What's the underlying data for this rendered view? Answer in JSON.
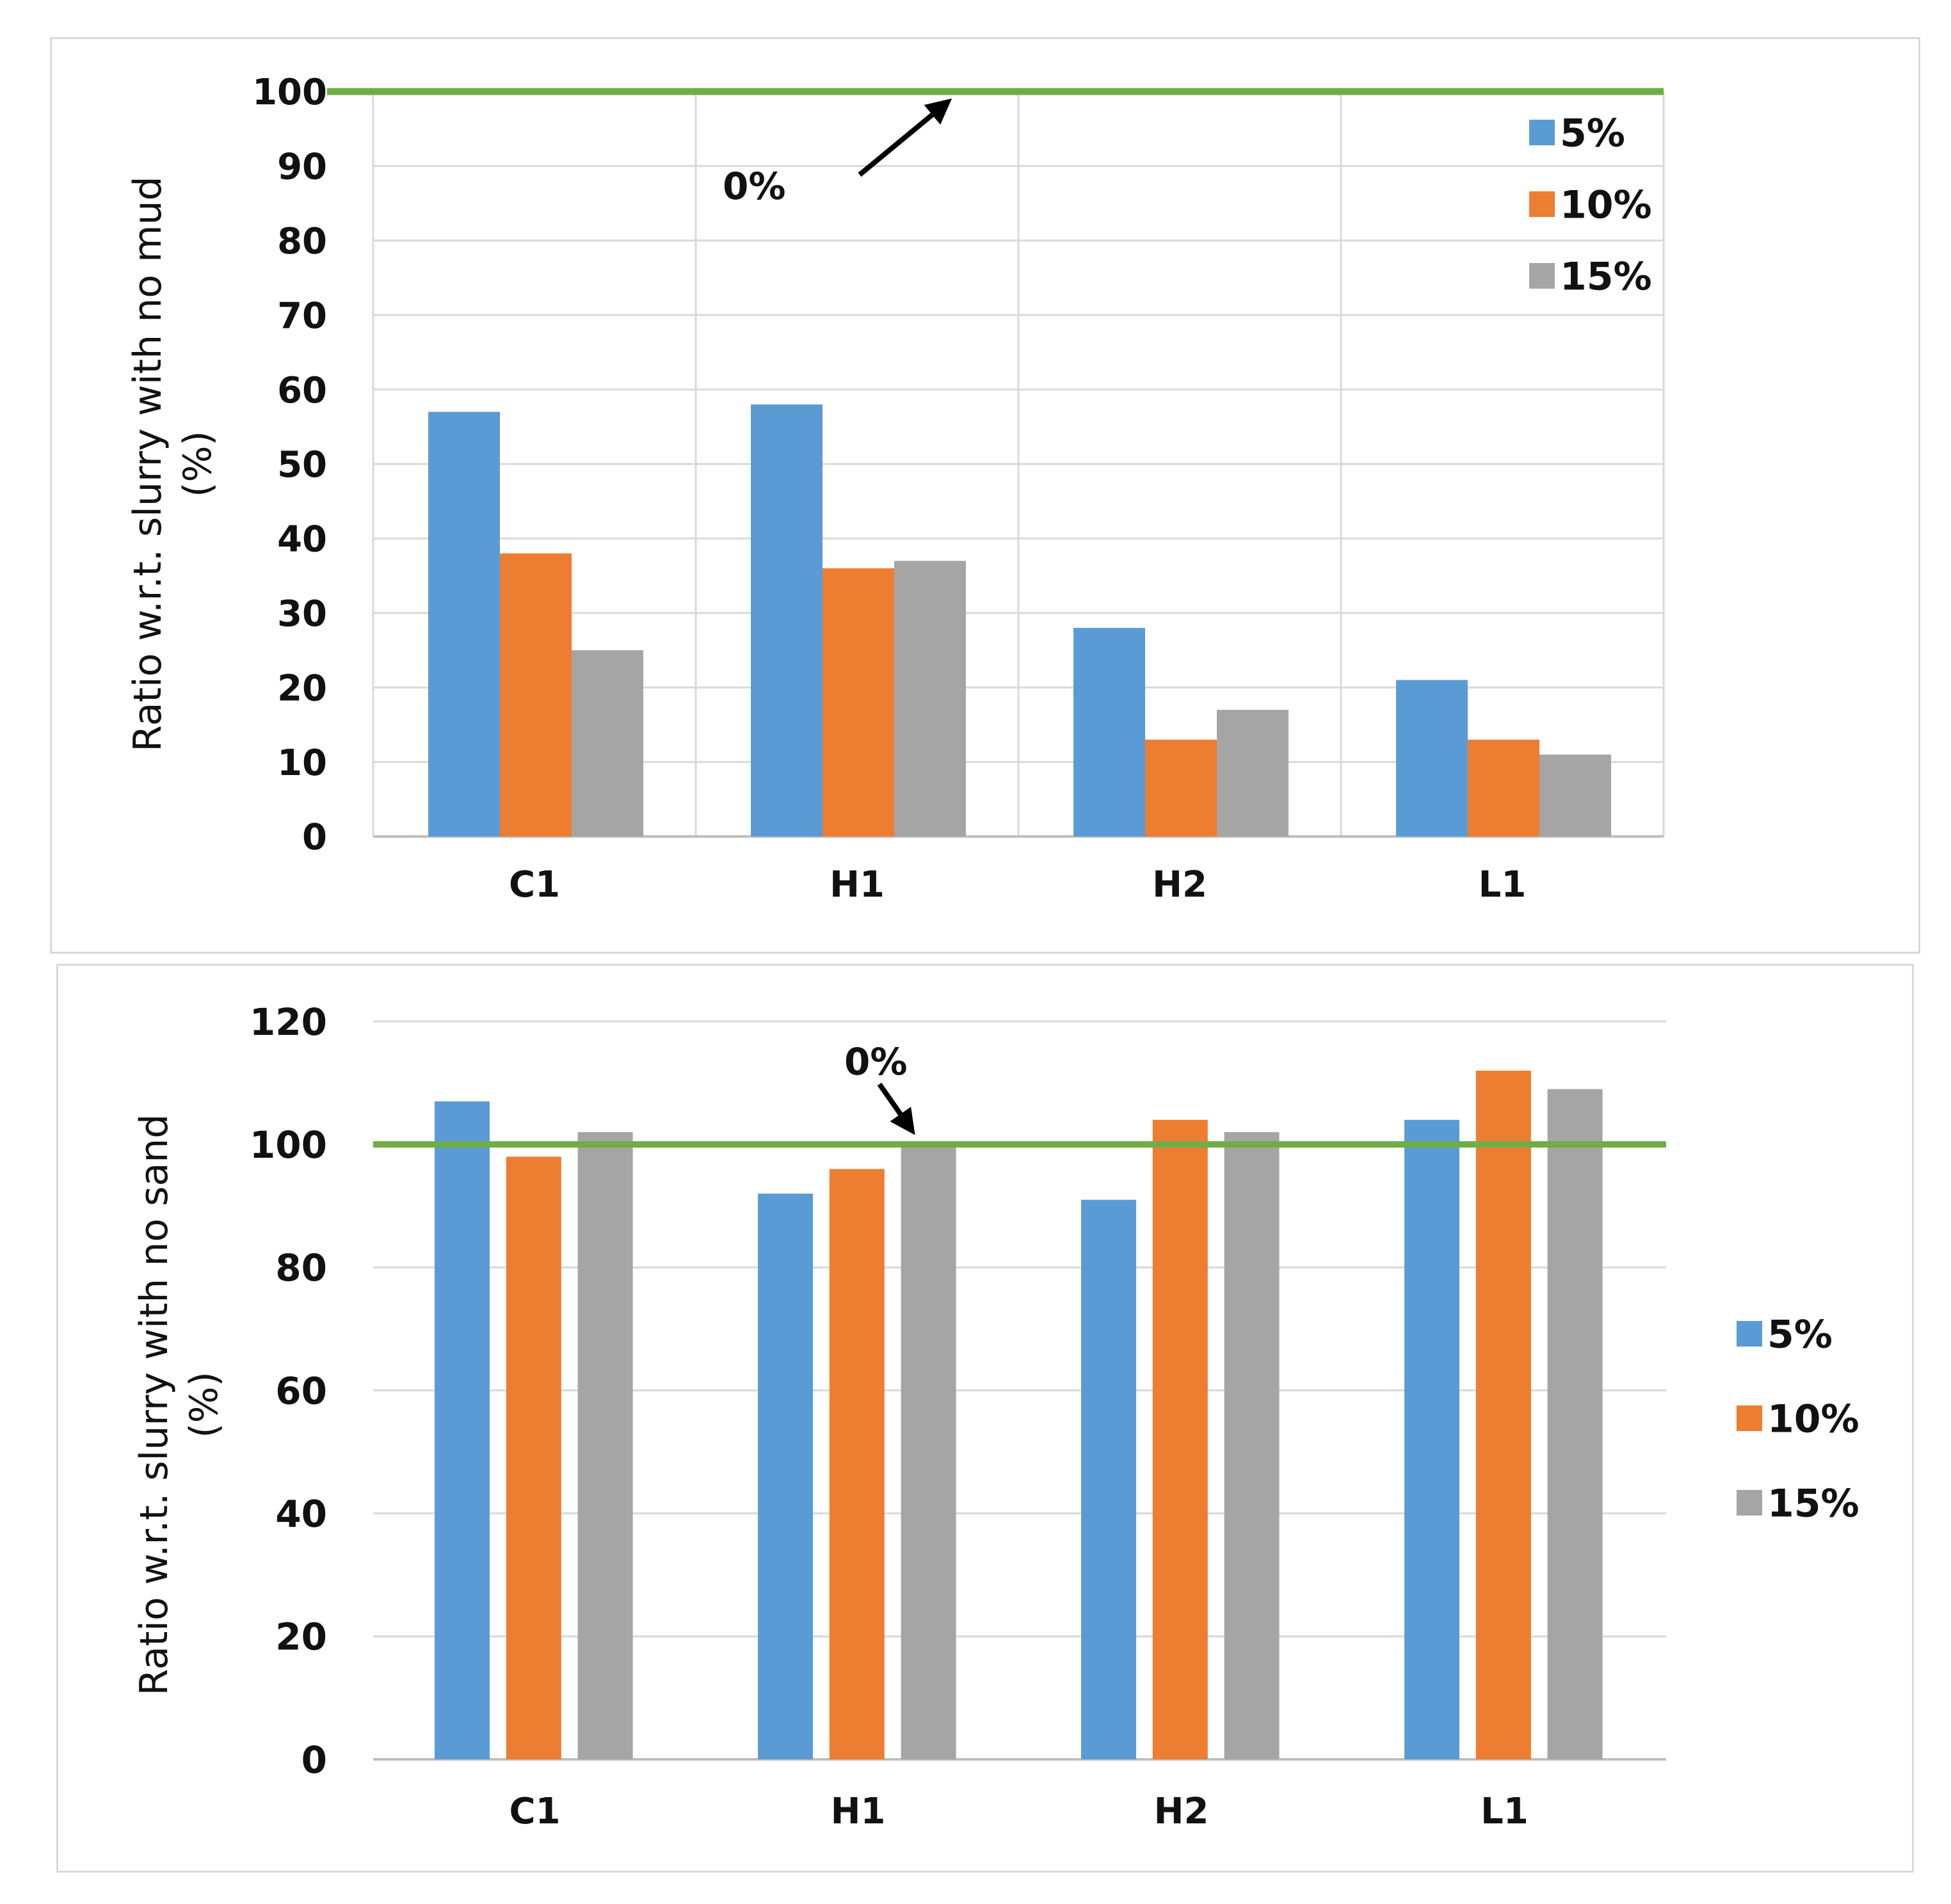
{
  "colors": {
    "s5": "#5b9bd5",
    "s10": "#ed7d31",
    "s15": "#a5a5a5",
    "reference": "#70ad47",
    "grid": "#d9d9d9",
    "axis": "#bfbfbf"
  },
  "chart_data": [
    {
      "type": "bar",
      "categories": [
        "C1",
        "H1",
        "H2",
        "L1"
      ],
      "series": [
        {
          "name": "5%",
          "values": [
            57,
            58,
            28,
            21
          ]
        },
        {
          "name": "10%",
          "values": [
            38,
            36,
            13,
            13
          ]
        },
        {
          "name": "15%",
          "values": [
            25,
            37,
            17,
            11
          ]
        }
      ],
      "ylabel_line1": "Ratio w.r.t. slurry with no mud",
      "ylabel_line2": "(%)",
      "ylim": [
        0,
        100
      ],
      "yticks": [
        0,
        10,
        20,
        30,
        40,
        50,
        60,
        70,
        80,
        90,
        100
      ],
      "vertical_grid": true,
      "reference": {
        "value": 100,
        "label": "0%"
      },
      "legend_position": "top-right"
    },
    {
      "type": "bar",
      "categories": [
        "C1",
        "H1",
        "H2",
        "L1"
      ],
      "series": [
        {
          "name": "5%",
          "values": [
            107,
            92,
            91,
            104
          ]
        },
        {
          "name": "10%",
          "values": [
            98,
            96,
            104,
            112
          ]
        },
        {
          "name": "15%",
          "values": [
            102,
            100,
            102,
            109
          ]
        }
      ],
      "ylabel_line1": "Ratio w.r.t. slurry with no sand",
      "ylabel_line2": "(%)",
      "ylim": [
        0,
        120
      ],
      "yticks": [
        0,
        20,
        40,
        60,
        80,
        100,
        120
      ],
      "vertical_grid": false,
      "reference": {
        "value": 100,
        "label": "0%"
      },
      "legend_position": "right"
    }
  ]
}
